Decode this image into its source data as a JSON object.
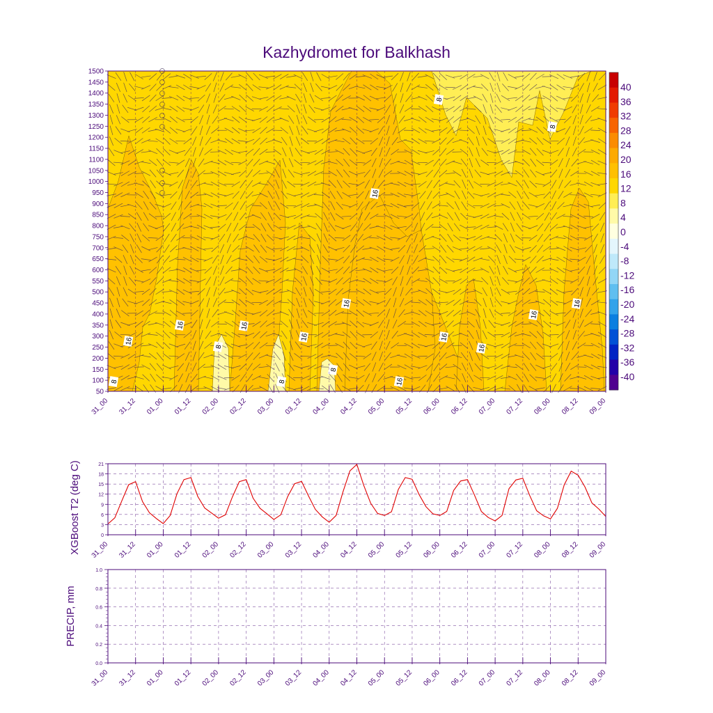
{
  "title": "Kazhydromet for Balkhash",
  "time_labels": [
    "31_00",
    "31_12",
    "01_00",
    "01_12",
    "02_00",
    "02_12",
    "03_00",
    "03_12",
    "04_00",
    "04_12",
    "05_00",
    "05_12",
    "06_00",
    "06_12",
    "07_00",
    "07_12",
    "08_00",
    "08_12",
    "09_00"
  ],
  "chart_data": [
    {
      "type": "heatmap",
      "name": "temperature-wind-cross-section",
      "title": "Kazhydromet for Balkhash",
      "ylabel": "",
      "y_levels": [
        1500,
        1450,
        1400,
        1350,
        1300,
        1250,
        1200,
        1150,
        1100,
        1050,
        1000,
        950,
        900,
        850,
        800,
        750,
        700,
        650,
        600,
        550,
        500,
        450,
        400,
        350,
        300,
        250,
        200,
        150,
        100,
        50
      ],
      "ylim": [
        50,
        1500
      ],
      "colorbar_levels": [
        40,
        36,
        32,
        28,
        24,
        20,
        16,
        12,
        8,
        4,
        0,
        -4,
        -8,
        -12,
        -16,
        -20,
        -24,
        -28,
        -32,
        -36,
        -40
      ],
      "colorbar_colors": [
        "#c80000",
        "#e31a00",
        "#f03c00",
        "#f76400",
        "#fb8c00",
        "#fdaa00",
        "#ffc000",
        "#ffd700",
        "#ffee55",
        "#fffaa8",
        "#ffffe0",
        "#e4f6fc",
        "#bfe9fa",
        "#92d6f6",
        "#60bff0",
        "#32a3ea",
        "#0b7fe0",
        "#0052d6",
        "#0024c4",
        "#2200a8",
        "#500090"
      ],
      "contour_labels": [
        "8",
        "16",
        "16",
        "8",
        "16",
        "8",
        "16",
        "8",
        "16",
        "16",
        "16",
        "8",
        "16",
        "16",
        "8",
        "16",
        "16"
      ],
      "contour_colors": {
        "warm": "#ffc000",
        "mid": "#ffd700",
        "cool": "#ffee55",
        "cold": "#fffaa8",
        "line": "#8a6a00"
      }
    },
    {
      "type": "line",
      "name": "t2-forecast",
      "ylabel": "XGBoost T2 (deg C)",
      "ylim": [
        0,
        21
      ],
      "y_ticks": [
        "21",
        "18",
        "15",
        "12",
        "9",
        "6",
        "3",
        "0"
      ],
      "color": "#e00000",
      "values": [
        3.2,
        5,
        10,
        14.8,
        15.7,
        9.8,
        6.5,
        4.8,
        3.3,
        5.7,
        12.2,
        16.3,
        16.9,
        11.3,
        7.9,
        6.4,
        4.9,
        5.9,
        11.2,
        15.7,
        16.3,
        10.8,
        7.8,
        6.2,
        4.5,
        5.9,
        11.3,
        15.1,
        15.8,
        11.5,
        7.5,
        5.3,
        3.7,
        5.7,
        12.7,
        18.9,
        20.8,
        14.6,
        9.3,
        6.3,
        5.7,
        6.8,
        13.4,
        16.9,
        16.4,
        11.9,
        8.3,
        6.2,
        5.7,
        6.9,
        13.1,
        15.9,
        16.3,
        11.8,
        6.9,
        5.1,
        4.1,
        5.7,
        13.6,
        16.2,
        16.7,
        11.6,
        7.1,
        5.6,
        4.7,
        7.8,
        14.8,
        18.8,
        17.6,
        14.1,
        9.4,
        7.6,
        5.4
      ]
    },
    {
      "type": "line",
      "name": "precipitation",
      "ylabel": "PRECIP, mm",
      "ylim": [
        0,
        1
      ],
      "y_ticks": [
        "1.0",
        "0.8",
        "0.6",
        "0.4",
        "0.2",
        "0.0"
      ],
      "values": []
    }
  ]
}
